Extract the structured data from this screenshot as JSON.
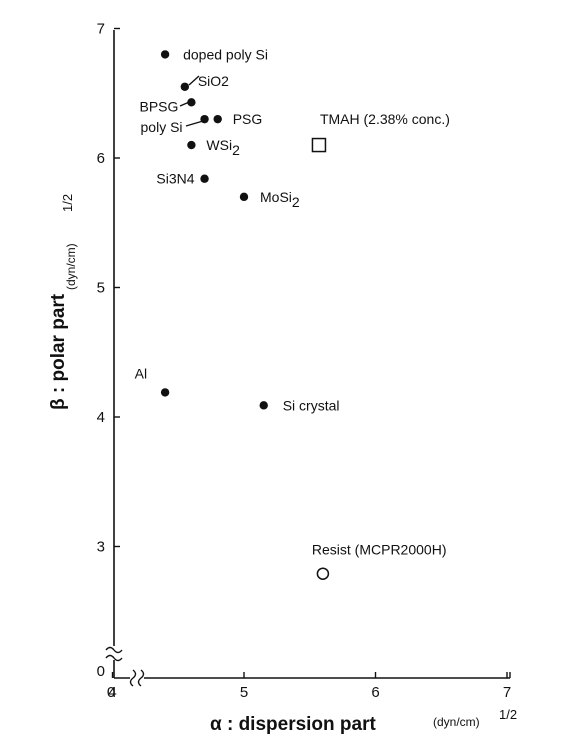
{
  "chart_data": {
    "type": "scatter",
    "title": "",
    "xlabel": "α : dispersion part",
    "ylabel": "β : polar part",
    "x_unit": "(dyn/cm)",
    "y_unit": "(dyn/cm)",
    "unit_exponent": "1/2",
    "xlim": [
      3,
      7
    ],
    "ylim": [
      2.3,
      7
    ],
    "x_ticks": [
      0,
      4,
      5,
      6,
      7
    ],
    "y_ticks": [
      0,
      3,
      4,
      5,
      6,
      7
    ],
    "axis_break": true,
    "grid": false,
    "legend": "none",
    "points": [
      {
        "label": "doped poly Si",
        "x": 4.4,
        "y": 6.8,
        "marker": "dot"
      },
      {
        "label": "SiO2",
        "x": 4.55,
        "y": 6.55,
        "marker": "dot"
      },
      {
        "label": "BPSG",
        "x": 4.6,
        "y": 6.43,
        "marker": "dot"
      },
      {
        "label": "poly Si",
        "x": 4.7,
        "y": 6.3,
        "marker": "dot"
      },
      {
        "label": "PSG",
        "x": 4.8,
        "y": 6.3,
        "marker": "dot"
      },
      {
        "label": "WSi",
        "label_sub": "2",
        "x": 4.6,
        "y": 6.1,
        "marker": "dot"
      },
      {
        "label": "Si3N4",
        "x": 4.7,
        "y": 5.84,
        "marker": "dot"
      },
      {
        "label": "MoSi",
        "label_sub": "2",
        "x": 5.0,
        "y": 5.7,
        "marker": "dot"
      },
      {
        "label": "TMAH (2.38% conc.)",
        "x": 5.57,
        "y": 6.1,
        "marker": "open-square"
      },
      {
        "label": "Al",
        "x": 4.4,
        "y": 4.19,
        "marker": "dot"
      },
      {
        "label": "Si crystal",
        "x": 5.15,
        "y": 4.09,
        "marker": "dot"
      },
      {
        "label": "Resist (MCPR2000H)",
        "x": 5.6,
        "y": 2.79,
        "marker": "open-circle"
      }
    ]
  }
}
